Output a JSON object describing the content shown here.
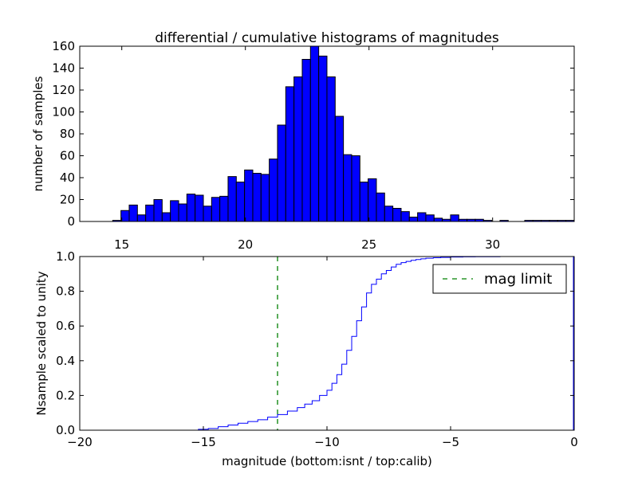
{
  "chart_data": [
    {
      "type": "bar",
      "title": "differential / cumulative histograms of magnitudes",
      "xlabel": "",
      "ylabel": "number of samples",
      "xlim": [
        13.3,
        33.3
      ],
      "ylim": [
        0,
        160
      ],
      "xticks": [
        "15",
        "20",
        "25",
        "30"
      ],
      "xtick_values": [
        15,
        20,
        25,
        30
      ],
      "yticks": [
        "0",
        "20",
        "40",
        "60",
        "80",
        "100",
        "120",
        "140",
        "160"
      ],
      "ytick_values": [
        0,
        20,
        40,
        60,
        80,
        100,
        120,
        140,
        160
      ],
      "bar_color": "#0000ff",
      "bin_start": 13.3,
      "bin_width": 0.3333,
      "values": [
        0,
        0,
        0,
        0,
        1,
        10,
        15,
        6,
        15,
        20,
        8,
        19,
        16,
        25,
        24,
        14,
        22,
        23,
        41,
        36,
        47,
        44,
        43,
        57,
        88,
        123,
        132,
        148,
        160,
        151,
        132,
        96,
        61,
        60,
        36,
        39,
        26,
        14,
        12,
        9,
        4,
        8,
        6,
        3,
        2,
        6,
        2,
        2,
        2,
        1,
        0,
        1,
        0,
        0,
        1,
        1,
        1,
        1,
        1,
        1
      ]
    },
    {
      "type": "line",
      "xlabel": "magnitude (bottom:isnt / top:calib)",
      "ylabel": "Nsample scaled to unity",
      "xlim": [
        -20,
        0
      ],
      "ylim": [
        0,
        1
      ],
      "xticks": [
        "−20",
        "−15",
        "−10",
        "−5",
        "0"
      ],
      "xtick_values": [
        -20,
        -15,
        -10,
        -5,
        0
      ],
      "yticks": [
        "0.0",
        "0.2",
        "0.4",
        "0.6",
        "0.8",
        "1.0"
      ],
      "ytick_values": [
        0,
        0.2,
        0.4,
        0.6,
        0.8,
        1.0
      ],
      "series": [
        {
          "name": "cumulative",
          "style": "steps",
          "color": "#0000ff",
          "x": [
            -20,
            -15.2,
            -14.8,
            -14.4,
            -14.0,
            -13.6,
            -13.2,
            -12.8,
            -12.4,
            -12.0,
            -11.6,
            -11.2,
            -10.9,
            -10.6,
            -10.3,
            -10.0,
            -9.8,
            -9.6,
            -9.4,
            -9.2,
            -9.0,
            -8.8,
            -8.6,
            -8.4,
            -8.2,
            -8.0,
            -7.8,
            -7.6,
            -7.4,
            -7.2,
            -7.0,
            -6.8,
            -6.6,
            -6.4,
            -6.2,
            -6.0,
            -5.7,
            -5.4,
            -5.0,
            -4.5,
            -4.0,
            -3.0,
            0
          ],
          "y": [
            0.0,
            0.005,
            0.01,
            0.02,
            0.03,
            0.04,
            0.05,
            0.06,
            0.075,
            0.09,
            0.11,
            0.13,
            0.15,
            0.17,
            0.2,
            0.23,
            0.27,
            0.32,
            0.38,
            0.46,
            0.54,
            0.63,
            0.71,
            0.79,
            0.84,
            0.87,
            0.9,
            0.92,
            0.94,
            0.955,
            0.965,
            0.972,
            0.978,
            0.983,
            0.987,
            0.99,
            0.993,
            0.995,
            0.997,
            0.998,
            0.999,
            1.0,
            1.0
          ]
        },
        {
          "name": "mag limit",
          "style": "dashed-vertical",
          "color": "#008000",
          "x_value": -12.0
        }
      ],
      "legend": {
        "location": "top-right",
        "entries": [
          "mag limit"
        ]
      }
    }
  ]
}
